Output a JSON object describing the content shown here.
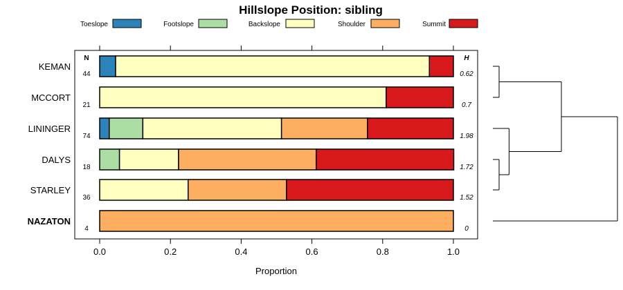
{
  "chart_data": {
    "type": "bar",
    "subtype": "stacked-horizontal-proportion",
    "title": "Hillslope Position: sibling",
    "xlabel": "Proportion",
    "ylabel": "",
    "xlim": [
      0,
      1
    ],
    "x_ticks": [
      "0.0",
      "0.2",
      "0.4",
      "0.6",
      "0.8",
      "1.0"
    ],
    "legend_position": "top",
    "n_header": "N",
    "h_header": "H",
    "legend": [
      {
        "name": "Toeslope",
        "color": "#2b83ba"
      },
      {
        "name": "Footslope",
        "color": "#abdda4"
      },
      {
        "name": "Backslope",
        "color": "#ffffbf"
      },
      {
        "name": "Shoulder",
        "color": "#fdae61"
      },
      {
        "name": "Summit",
        "color": "#d7191c"
      }
    ],
    "categories": [
      "KEMAN",
      "MCCORT",
      "LININGER",
      "DALYS",
      "STARLEY",
      "NAZATON"
    ],
    "highlight": "NAZATON",
    "n": [
      "44",
      "21",
      "74",
      "18",
      "36",
      "4"
    ],
    "h": [
      "0.62",
      "0.7",
      "1.98",
      "1.72",
      "1.52",
      "0"
    ],
    "series": [
      {
        "name": "Toeslope",
        "values": [
          0.045,
          0,
          0.027,
          0,
          0,
          0
        ]
      },
      {
        "name": "Footslope",
        "values": [
          0,
          0,
          0.095,
          0.056,
          0,
          0
        ]
      },
      {
        "name": "Backslope",
        "values": [
          0.887,
          0.81,
          0.392,
          0.167,
          0.25,
          0
        ]
      },
      {
        "name": "Shoulder",
        "values": [
          0,
          0,
          0.243,
          0.389,
          0.278,
          1.0
        ]
      },
      {
        "name": "Summit",
        "values": [
          0.068,
          0.19,
          0.243,
          0.389,
          0.472,
          0
        ]
      }
    ],
    "dendrogram": {
      "description": "hierarchical clustering of sites",
      "merges": [
        {
          "members": [
            "KEMAN",
            "MCCORT"
          ],
          "height": 0.05
        },
        {
          "members": [
            "DALYS",
            "STARLEY"
          ],
          "height": 0.05
        },
        {
          "members": [
            "LININGER",
            "DALYS+STARLEY"
          ],
          "height": 0.13
        },
        {
          "members": [
            "KEMAN+MCCORT",
            "LININGER+DALYS+STARLEY"
          ],
          "height": 0.55
        },
        {
          "members": [
            "all_others",
            "NAZATON"
          ],
          "height": 1.0
        }
      ]
    }
  }
}
